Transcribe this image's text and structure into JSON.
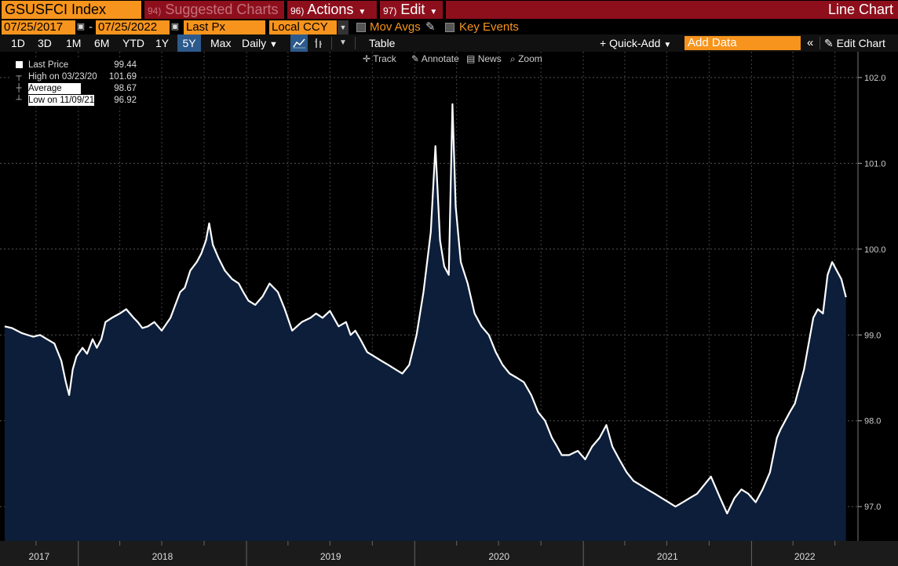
{
  "header": {
    "ticker": "GSUSFCI Index",
    "suggested_num": "94)",
    "suggested_label": "Suggested Charts",
    "actions_num": "96)",
    "actions_label": "Actions",
    "edit_num": "97)",
    "edit_label": "Edit",
    "chart_type": "Line Chart"
  },
  "dates": {
    "start": "07/25/2017",
    "sep": "-",
    "end": "07/25/2022",
    "field": "Last Px",
    "currency": "Local CCY",
    "mov_avgs": "Mov Avgs",
    "key_events": "Key Events"
  },
  "toolbar": {
    "periods": [
      "1D",
      "3D",
      "1M",
      "6M",
      "YTD",
      "1Y",
      "5Y",
      "Max"
    ],
    "active_period": "5Y",
    "frequency": "Daily",
    "table": "Table",
    "quick_add": "Quick-Add",
    "add_data_placeholder": "Add Data",
    "edit_chart": "Edit Chart"
  },
  "tools": {
    "track": "Track",
    "annotate": "Annotate",
    "news": "News",
    "zoom": "Zoom"
  },
  "legend": {
    "last_label": "Last Price",
    "last_value": "99.44",
    "high_label": "High on",
    "high_date": "03/23/20",
    "high_value": "101.69",
    "avg_label": "Average",
    "avg_value": "98.67",
    "low_label": "Low on",
    "low_date": "11/09/21",
    "low_value": "96.92"
  },
  "colors": {
    "accent": "#f7941d",
    "header_red": "#8e0f1c",
    "area_fill": "#0c1e3a",
    "line": "#ffffff",
    "background": "#000000"
  },
  "icons": [
    "calendar-icon",
    "pencil-icon",
    "line-chart-icon",
    "bar-chart-icon",
    "plus-icon",
    "double-chevron-left-icon",
    "pencil-icon",
    "crosshair-icon",
    "news-icon",
    "magnifier-icon"
  ],
  "chart_data": {
    "type": "area",
    "series": [
      {
        "x": [
          "2017-07-25",
          "2017-08-10",
          "2017-09-01",
          "2017-09-25",
          "2017-10-10",
          "2017-10-25",
          "2017-11-10",
          "2017-11-25",
          "2017-12-05",
          "2017-12-12",
          "2017-12-20",
          "2017-12-28",
          "2018-01-10",
          "2018-01-20",
          "2018-02-01",
          "2018-02-10",
          "2018-02-20",
          "2018-03-01",
          "2018-03-15",
          "2018-04-01",
          "2018-04-15",
          "2018-05-01",
          "2018-05-10",
          "2018-05-20",
          "2018-06-01",
          "2018-06-15",
          "2018-07-01",
          "2018-07-20",
          "2018-08-10",
          "2018-08-20",
          "2018-09-01",
          "2018-09-15",
          "2018-09-25",
          "2018-10-05",
          "2018-10-12",
          "2018-10-20",
          "2018-11-01",
          "2018-11-15",
          "2018-12-01",
          "2018-12-15",
          "2018-12-25",
          "2019-01-05",
          "2019-01-20",
          "2019-02-05",
          "2019-02-20",
          "2019-03-10",
          "2019-03-25",
          "2019-04-10",
          "2019-05-01",
          "2019-05-20",
          "2019-06-01",
          "2019-06-15",
          "2019-07-01",
          "2019-07-20",
          "2019-08-05",
          "2019-08-15",
          "2019-08-25",
          "2019-09-05",
          "2019-09-20",
          "2019-10-05",
          "2019-10-20",
          "2019-11-05",
          "2019-11-20",
          "2019-12-05",
          "2019-12-20",
          "2020-01-05",
          "2020-01-20",
          "2020-02-05",
          "2020-02-15",
          "2020-02-25",
          "2020-03-05",
          "2020-03-15",
          "2020-03-23",
          "2020-03-30",
          "2020-04-10",
          "2020-04-25",
          "2020-05-10",
          "2020-05-25",
          "2020-06-10",
          "2020-06-25",
          "2020-07-10",
          "2020-07-25",
          "2020-08-10",
          "2020-08-25",
          "2020-09-10",
          "2020-09-25",
          "2020-10-10",
          "2020-10-25",
          "2020-11-05",
          "2020-11-15",
          "2020-12-01",
          "2020-12-20",
          "2021-01-05",
          "2021-01-20",
          "2021-02-05",
          "2021-02-20",
          "2021-03-05",
          "2021-03-20",
          "2021-04-05",
          "2021-04-20",
          "2021-05-05",
          "2021-05-20",
          "2021-06-05",
          "2021-06-20",
          "2021-07-05",
          "2021-07-20",
          "2021-08-05",
          "2021-08-20",
          "2021-09-05",
          "2021-09-20",
          "2021-10-05",
          "2021-10-25",
          "2021-11-09",
          "2021-11-25",
          "2021-12-10",
          "2021-12-25",
          "2022-01-10",
          "2022-01-25",
          "2022-02-10",
          "2022-02-25",
          "2022-03-05",
          "2022-03-15",
          "2022-03-25",
          "2022-04-05",
          "2022-04-15",
          "2022-04-25",
          "2022-05-05",
          "2022-05-15",
          "2022-05-25",
          "2022-06-05",
          "2022-06-15",
          "2022-06-25",
          "2022-07-05",
          "2022-07-15",
          "2022-07-25"
        ],
        "y": [
          99.1,
          99.08,
          99.02,
          98.98,
          99.0,
          98.95,
          98.9,
          98.7,
          98.45,
          98.3,
          98.6,
          98.75,
          98.85,
          98.78,
          98.95,
          98.85,
          98.95,
          99.15,
          99.2,
          99.25,
          99.3,
          99.2,
          99.15,
          99.08,
          99.1,
          99.15,
          99.05,
          99.2,
          99.5,
          99.55,
          99.75,
          99.85,
          99.95,
          100.1,
          100.3,
          100.05,
          99.9,
          99.75,
          99.65,
          99.6,
          99.5,
          99.4,
          99.35,
          99.45,
          99.6,
          99.5,
          99.3,
          99.05,
          99.15,
          99.2,
          99.25,
          99.2,
          99.28,
          99.1,
          99.15,
          99.0,
          99.05,
          98.95,
          98.8,
          98.75,
          98.7,
          98.65,
          98.6,
          98.55,
          98.65,
          99.0,
          99.5,
          100.2,
          101.2,
          100.1,
          99.8,
          99.7,
          101.69,
          100.5,
          99.85,
          99.6,
          99.25,
          99.1,
          99.0,
          98.8,
          98.65,
          98.55,
          98.5,
          98.45,
          98.3,
          98.1,
          98.0,
          97.8,
          97.7,
          97.6,
          97.6,
          97.65,
          97.55,
          97.7,
          97.8,
          97.95,
          97.7,
          97.55,
          97.4,
          97.3,
          97.25,
          97.2,
          97.15,
          97.1,
          97.05,
          97.0,
          97.05,
          97.1,
          97.15,
          97.25,
          97.35,
          97.1,
          96.92,
          97.1,
          97.2,
          97.15,
          97.05,
          97.2,
          97.4,
          97.8,
          97.9,
          98.0,
          98.1,
          98.2,
          98.4,
          98.6,
          98.9,
          99.2,
          99.3,
          99.25,
          99.7,
          99.85,
          99.75,
          99.65,
          99.44
        ]
      }
    ],
    "ylim": [
      96.6,
      102.3
    ],
    "y_ticks": [
      "97.0",
      "98.0",
      "99.0",
      "100.0",
      "101.0",
      "102.0"
    ],
    "x_labels": [
      "2017",
      "2018",
      "2019",
      "2020",
      "2021",
      "2022"
    ],
    "grid": true,
    "legend_position": "top-left"
  }
}
